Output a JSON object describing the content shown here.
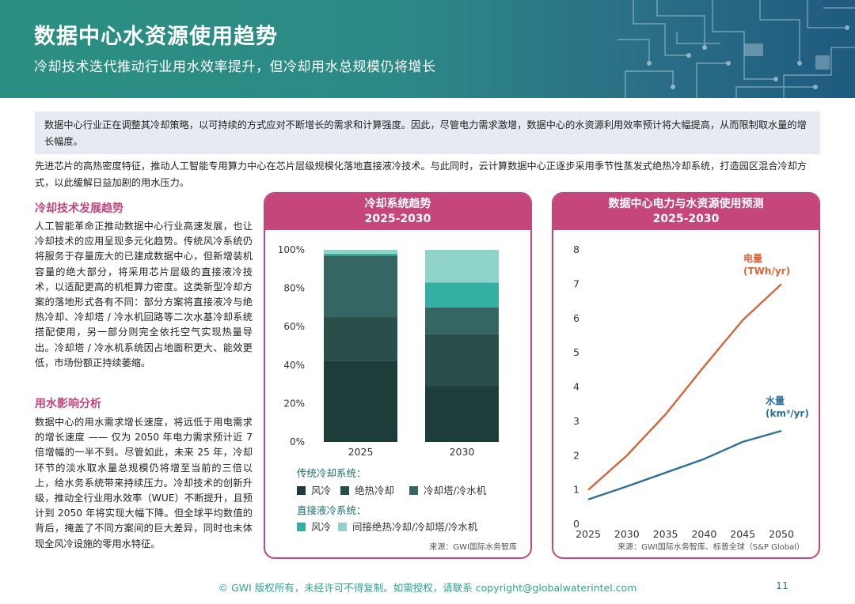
{
  "header": {
    "title": "数据中心水资源使用趋势",
    "subtitle": "冷却技术迭代推动行业用水效率提升，但冷却用水总规模仍将增长"
  },
  "intro": "数据中心行业正在调整其冷却策略，以可持续的方式应对不断增长的需求和计算强度。因此，尽管电力需求激增，数据中心的水资源利用效率预计将大幅提高，从而限制取水量的增长幅度。",
  "lead": "先进芯片的高热密度特征，推动人工智能专用算力中心在芯片层级规模化落地直接液冷技术。与此同时，云计算数据中心正逐步采用季节性蒸发式绝热冷却系统，打造园区混合冷却方式，以此缓解日益加剧的用水压力。",
  "section1": {
    "heading": "冷却技术发展趋势",
    "body": "人工智能革命正推动数据中心行业高速发展，也让冷却技术的应用呈现多元化趋势。传统风冷系统仍将服务于存量庞大的已建成数据中心，但新增装机容量的绝大部分，将采用芯片层级的直接液冷技术，以适配更高的机柜算力密度。这类新型冷却方案的落地形式各有不同：部分方案将直接液冷与绝热冷却、冷却塔 / 冷水机回路等二次水基冷却系统搭配使用，另一部分则完全依托空气实现热量导出。冷却塔 / 冷水机系统因占地面积更大、能效更低，市场份额正持续萎缩。"
  },
  "section2": {
    "heading": "用水影响分析",
    "body": "数据中心的用水需求增长速度，将远低于用电需求的增长速度 —— 仅为 2050 年电力需求预计近 7 倍增幅的一半不到。尽管如此，未来 25 年，冷却环节的淡水取水量总规模仍将增至当前的三倍以上，给水务系统带来持续压力。冷却技术的创新升级，推动全行业用水效率（WUE）不断提升，且预计到 2050 年将实现大幅下降。但全球平均数值的背后，掩盖了不同方案间的巨大差异，同时也未体现全风冷设施的零用水特征。"
  },
  "panel1": {
    "title_line1": "冷却系统趋势",
    "title_line2": "2025-2030",
    "legend_group1": "传统冷却系统：",
    "legend_group2": "直接液冷系统：",
    "source": "来源：GWI国际水务智库"
  },
  "panel2": {
    "title_line1": "数据中心电力与水资源使用预测",
    "title_line2": "2025-2030",
    "source": "来源：GWI国际水务智库、标普全球（S&P Global）"
  },
  "chart_data": [
    {
      "type": "bar",
      "stacked": true,
      "title": "冷却系统趋势 2025-2030",
      "categories": [
        "2025",
        "2030"
      ],
      "ylim": [
        0,
        100
      ],
      "yticks": [
        "0%",
        "20%",
        "40%",
        "60%",
        "80%",
        "100%"
      ],
      "series": [
        {
          "name": "风冷",
          "group": "传统冷却系统",
          "color": "#1e3d3a",
          "values": [
            42,
            29
          ]
        },
        {
          "name": "绝热冷却",
          "group": "传统冷却系统",
          "color": "#2a4f4b",
          "values": [
            23,
            27
          ]
        },
        {
          "name": "冷却塔/冷水机",
          "group": "传统冷却系统",
          "color": "#356663",
          "values": [
            32,
            14
          ]
        },
        {
          "name": "风冷",
          "group": "直接液冷系统",
          "color": "#33b0a2",
          "values": [
            1,
            13
          ]
        },
        {
          "name": "间接绝热冷却/冷却塔/冷水机",
          "group": "直接液冷系统",
          "color": "#8fd3c9",
          "values": [
            2,
            17
          ]
        }
      ]
    },
    {
      "type": "line",
      "title": "数据中心电力与水资源使用预测 2025-2030",
      "x": [
        "2025",
        "2030",
        "2035",
        "2040",
        "2045",
        "2050"
      ],
      "ylim": [
        0,
        8
      ],
      "yticks": [
        "0",
        "1",
        "2",
        "3",
        "4",
        "5",
        "6",
        "7",
        "8"
      ],
      "series": [
        {
          "name": "电量",
          "unit": "(TWh/yr)",
          "color": "#d8643a",
          "values": [
            1.0,
            2.0,
            3.2,
            4.6,
            5.95,
            7.0
          ]
        },
        {
          "name": "水量",
          "unit": "(km³/yr)",
          "color": "#2e6f97",
          "values": [
            0.72,
            1.1,
            1.5,
            1.9,
            2.4,
            2.72
          ]
        }
      ]
    }
  ],
  "footer": "© GWI 版权所有，未经许可不得复制。如需授权，请联系 copyright@globalwaterintel.com",
  "page_number": "11"
}
